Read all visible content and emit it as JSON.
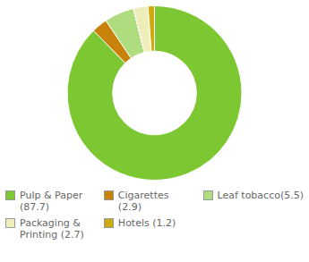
{
  "chart_data": {
    "type": "doughnut",
    "categories": [
      "Pulp & Paper (87.7)",
      "Cigarettes (2.9)",
      "Leaf tobacco(5.5)",
      "Packaging &\nPrinting (2.7)",
      "Hotels (1.2)"
    ],
    "values": [
      87.7,
      2.9,
      5.5,
      2.7,
      1.2
    ],
    "colors": [
      "#7dc832",
      "#c8820a",
      "#b0dc80",
      "#eeeebb",
      "#ccaa10"
    ],
    "legend": "bottom"
  }
}
